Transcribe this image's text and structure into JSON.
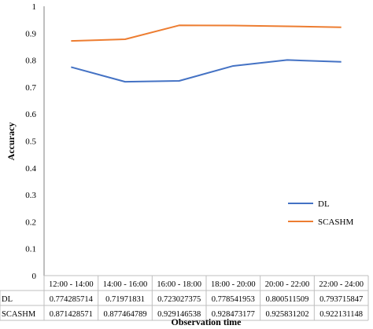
{
  "chart_data": {
    "type": "line",
    "xlabel": "Observation time",
    "ylabel": "Accuracy",
    "ylim": [
      0,
      1
    ],
    "yticks": [
      0,
      0.1,
      0.2,
      0.3,
      0.4,
      0.5,
      0.6,
      0.7,
      0.8,
      0.9,
      1
    ],
    "categories": [
      "12:00 - 14:00",
      "14:00 - 16:00",
      "16:00 - 18:00",
      "18:00 - 20:00",
      "20:00 - 22:00",
      "22:00 - 24:00"
    ],
    "grid": false,
    "legend_position": "right",
    "series": [
      {
        "name": "DL",
        "color": "#4472C4",
        "values": [
          0.774285714,
          0.71971831,
          0.723027375,
          0.778541953,
          0.800511509,
          0.793715847
        ],
        "labels": [
          "0.774285714",
          "0.71971831",
          "0.723027375",
          "0.778541953",
          "0.800511509",
          "0.793715847"
        ]
      },
      {
        "name": "SCASHM",
        "color": "#ED7D31",
        "values": [
          0.871428571,
          0.877464789,
          0.929146538,
          0.928473177,
          0.925831202,
          0.922131148
        ],
        "labels": [
          "0.871428571",
          "0.877464789",
          "0.929146538",
          "0.928473177",
          "0.925831202",
          "0.922131148"
        ]
      }
    ]
  }
}
